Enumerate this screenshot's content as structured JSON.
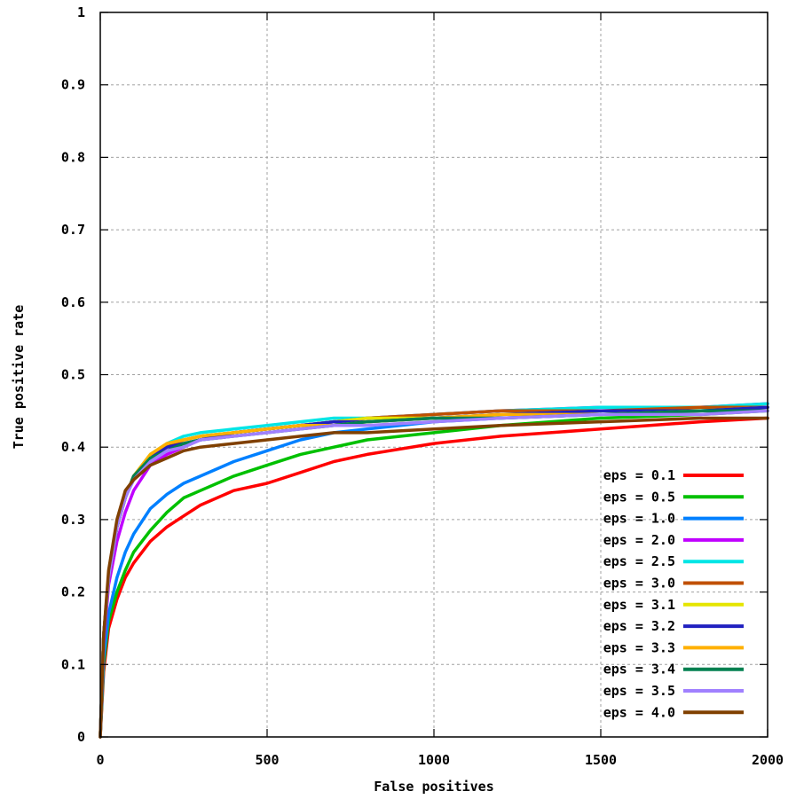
{
  "chart_data": {
    "type": "line",
    "title": "",
    "xlabel": "False positives",
    "ylabel": "True positive rate",
    "xlim": [
      0,
      2000
    ],
    "ylim": [
      0,
      1
    ],
    "x_ticks": [
      0,
      500,
      1000,
      1500,
      2000
    ],
    "x_tick_labels": [
      "0",
      "500",
      "1000",
      "1500",
      "2000"
    ],
    "y_ticks": [
      0,
      0.1,
      0.2,
      0.3,
      0.4,
      0.5,
      0.6,
      0.7,
      0.8,
      0.9,
      1
    ],
    "y_tick_labels": [
      "0",
      "0.1",
      "0.2",
      "0.3",
      "0.4",
      "0.5",
      "0.6",
      "0.7",
      "0.8",
      "0.9",
      "1"
    ],
    "grid": true,
    "legend_position": "bottom-right",
    "x": [
      0,
      10,
      25,
      50,
      75,
      100,
      150,
      200,
      250,
      300,
      400,
      500,
      600,
      700,
      800,
      1000,
      1200,
      1500,
      1800,
      2000
    ],
    "series": [
      {
        "name": "eps = 0.1",
        "color": "#ff0000",
        "values": [
          0.0,
          0.09,
          0.15,
          0.19,
          0.22,
          0.24,
          0.27,
          0.29,
          0.305,
          0.32,
          0.34,
          0.35,
          0.365,
          0.38,
          0.39,
          0.405,
          0.415,
          0.425,
          0.435,
          0.44
        ]
      },
      {
        "name": "eps = 0.5",
        "color": "#00c000",
        "values": [
          0.0,
          0.1,
          0.16,
          0.2,
          0.23,
          0.255,
          0.285,
          0.31,
          0.33,
          0.34,
          0.36,
          0.375,
          0.39,
          0.4,
          0.41,
          0.42,
          0.43,
          0.44,
          0.445,
          0.45
        ]
      },
      {
        "name": "eps = 1.0",
        "color": "#0080ff",
        "values": [
          0.0,
          0.11,
          0.17,
          0.22,
          0.255,
          0.28,
          0.315,
          0.335,
          0.35,
          0.36,
          0.38,
          0.395,
          0.41,
          0.42,
          0.425,
          0.435,
          0.44,
          0.445,
          0.45,
          0.455
        ]
      },
      {
        "name": "eps = 2.0",
        "color": "#c000ff",
        "values": [
          0.0,
          0.13,
          0.21,
          0.27,
          0.31,
          0.34,
          0.375,
          0.39,
          0.4,
          0.41,
          0.42,
          0.425,
          0.43,
          0.435,
          0.44,
          0.445,
          0.45,
          0.455,
          0.455,
          0.46
        ]
      },
      {
        "name": "eps = 2.5",
        "color": "#00e5e5",
        "values": [
          0.0,
          0.14,
          0.22,
          0.29,
          0.33,
          0.36,
          0.39,
          0.405,
          0.415,
          0.42,
          0.425,
          0.43,
          0.435,
          0.44,
          0.44,
          0.445,
          0.45,
          0.455,
          0.455,
          0.46
        ]
      },
      {
        "name": "eps = 3.0",
        "color": "#c05000",
        "values": [
          0.0,
          0.14,
          0.22,
          0.29,
          0.33,
          0.36,
          0.385,
          0.4,
          0.41,
          0.415,
          0.42,
          0.425,
          0.43,
          0.435,
          0.44,
          0.445,
          0.45,
          0.45,
          0.455,
          0.455
        ]
      },
      {
        "name": "eps = 3.1",
        "color": "#e5e500",
        "values": [
          0.0,
          0.14,
          0.22,
          0.29,
          0.33,
          0.36,
          0.39,
          0.405,
          0.41,
          0.415,
          0.42,
          0.425,
          0.43,
          0.435,
          0.44,
          0.44,
          0.445,
          0.45,
          0.45,
          0.455
        ]
      },
      {
        "name": "eps = 3.2",
        "color": "#2020c0",
        "values": [
          0.0,
          0.14,
          0.22,
          0.29,
          0.33,
          0.36,
          0.385,
          0.4,
          0.405,
          0.41,
          0.42,
          0.425,
          0.43,
          0.435,
          0.435,
          0.44,
          0.445,
          0.45,
          0.45,
          0.455
        ]
      },
      {
        "name": "eps = 3.3",
        "color": "#ffb000",
        "values": [
          0.0,
          0.14,
          0.22,
          0.29,
          0.33,
          0.36,
          0.39,
          0.405,
          0.41,
          0.415,
          0.42,
          0.425,
          0.43,
          0.43,
          0.435,
          0.44,
          0.445,
          0.445,
          0.45,
          0.45
        ]
      },
      {
        "name": "eps = 3.4",
        "color": "#008050",
        "values": [
          0.0,
          0.14,
          0.22,
          0.29,
          0.33,
          0.36,
          0.385,
          0.395,
          0.405,
          0.41,
          0.415,
          0.42,
          0.425,
          0.43,
          0.435,
          0.44,
          0.44,
          0.445,
          0.45,
          0.45
        ]
      },
      {
        "name": "eps = 3.5",
        "color": "#a080ff",
        "values": [
          0.0,
          0.14,
          0.22,
          0.29,
          0.33,
          0.355,
          0.38,
          0.395,
          0.4,
          0.41,
          0.415,
          0.42,
          0.425,
          0.43,
          0.43,
          0.435,
          0.44,
          0.445,
          0.445,
          0.45
        ]
      },
      {
        "name": "eps = 4.0",
        "color": "#804000",
        "values": [
          0.0,
          0.14,
          0.23,
          0.3,
          0.34,
          0.355,
          0.375,
          0.385,
          0.395,
          0.4,
          0.405,
          0.41,
          0.415,
          0.42,
          0.42,
          0.425,
          0.43,
          0.435,
          0.44,
          0.44
        ]
      }
    ]
  }
}
